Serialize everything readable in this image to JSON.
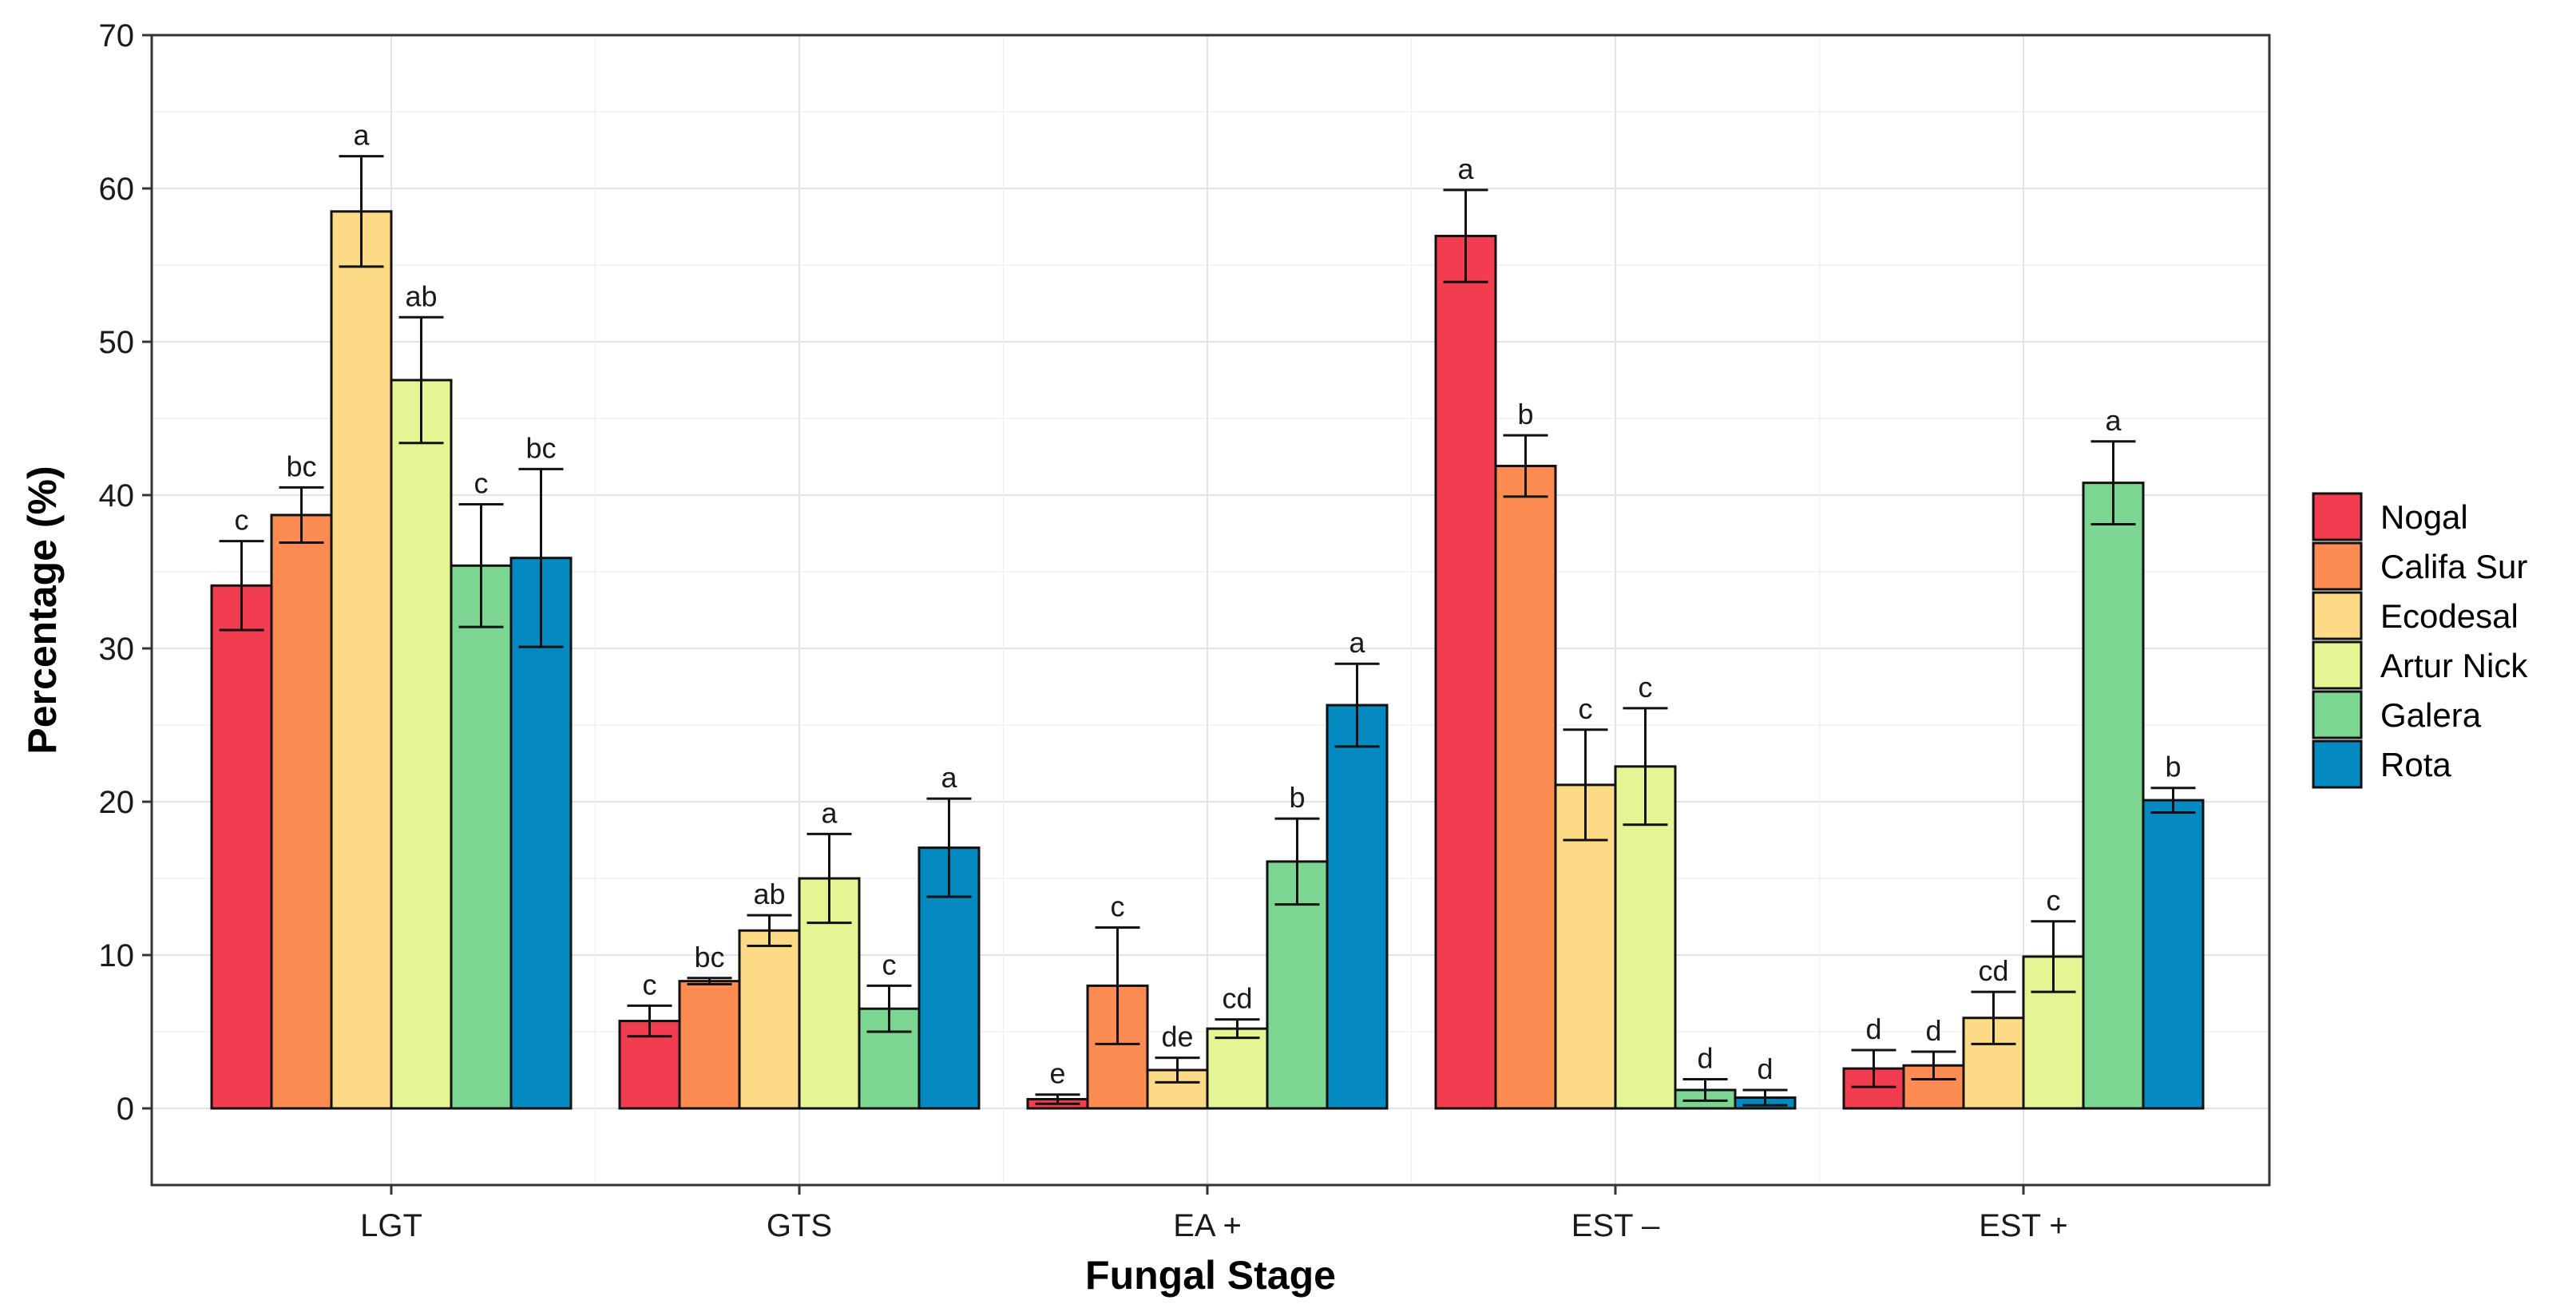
{
  "chart_data": {
    "type": "bar",
    "title": "",
    "xlabel": "Fungal Stage",
    "ylabel": "Percentage (%)",
    "ylim": [
      -5,
      70
    ],
    "yticks": [
      0,
      10,
      20,
      30,
      40,
      50,
      60,
      70
    ],
    "grid": true,
    "legend_position": "right",
    "categories": [
      "LGT",
      "GTS",
      "EA +",
      "EST –",
      "EST +"
    ],
    "series": [
      {
        "name": "Nogal",
        "color": "#f23c50",
        "values": [
          34.1,
          5.7,
          0.6,
          56.9,
          2.6
        ],
        "errors": [
          2.9,
          1.0,
          0.3,
          3.0,
          1.2
        ],
        "letters": [
          "c",
          "c",
          "e",
          "a",
          "d"
        ]
      },
      {
        "name": "Califa Sur",
        "color": "#fd8c52",
        "values": [
          38.7,
          8.3,
          8.0,
          41.9,
          2.8
        ],
        "errors": [
          1.8,
          0.2,
          3.8,
          2.0,
          0.9
        ],
        "letters": [
          "bc",
          "bc",
          "c",
          "b",
          "d"
        ]
      },
      {
        "name": "Ecodesal",
        "color": "#fddb86",
        "values": [
          58.5,
          11.6,
          2.5,
          21.1,
          5.9
        ],
        "errors": [
          3.6,
          1.0,
          0.8,
          3.6,
          1.7
        ],
        "letters": [
          "a",
          "ab",
          "de",
          "c",
          "cd"
        ]
      },
      {
        "name": "Artur Nick",
        "color": "#e5f593",
        "values": [
          47.5,
          15.0,
          5.2,
          22.3,
          9.9
        ],
        "errors": [
          4.1,
          2.9,
          0.6,
          3.8,
          2.3
        ],
        "letters": [
          "ab",
          "a",
          "cd",
          "c",
          "c"
        ]
      },
      {
        "name": "Galera",
        "color": "#7cd591",
        "values": [
          35.4,
          6.5,
          16.1,
          1.2,
          40.8
        ],
        "errors": [
          4.0,
          1.5,
          2.8,
          0.7,
          2.7
        ],
        "letters": [
          "c",
          "c",
          "b",
          "d",
          "a"
        ]
      },
      {
        "name": "Rota",
        "color": "#0489c1",
        "values": [
          35.9,
          17.0,
          26.3,
          0.7,
          20.1
        ],
        "errors": [
          5.8,
          3.2,
          2.7,
          0.5,
          0.8
        ],
        "letters": [
          "bc",
          "a",
          "a",
          "d",
          "b"
        ]
      }
    ]
  }
}
